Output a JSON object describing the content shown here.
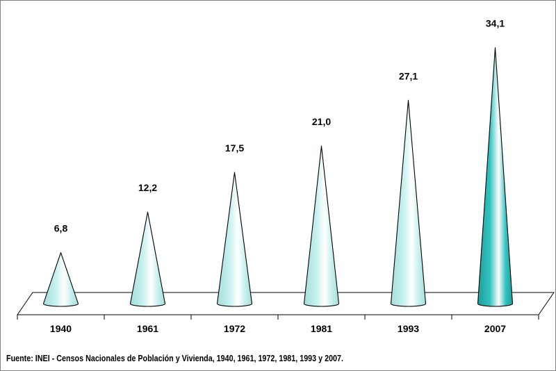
{
  "chart_data": {
    "type": "bar",
    "shape": "cone",
    "categories": [
      "1940",
      "1961",
      "1972",
      "1981",
      "1993",
      "2007"
    ],
    "values": [
      6.8,
      12.2,
      17.5,
      21.0,
      27.1,
      34.1
    ],
    "value_labels": [
      "6,8",
      "12,2",
      "17,5",
      "21,0",
      "27,1",
      "34,1"
    ],
    "highlight_index": 5,
    "legend": "none",
    "grid": false
  },
  "colors": {
    "cone": "#c5f0ee",
    "cone_edge": "#a5dedb",
    "cone_highlight": "#33c2c0",
    "cone_highlight_edge": "#1e9f9d",
    "stroke": "#000000"
  },
  "source_note": "Fuente: INEI - Censos Nacionales de Población y Vivienda, 1940, 1961, 1972, 1981, 1993 y 2007."
}
